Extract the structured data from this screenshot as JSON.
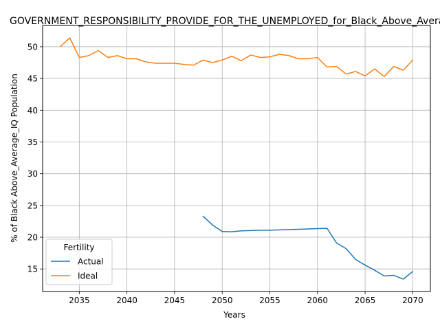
{
  "chart_data": {
    "type": "line",
    "title": "GOVERNMENT_RESPONSIBILITY_PROVIDE_FOR_THE_UNEMPLOYED_for_Black_Above_Average_IQ",
    "xlabel": "Years",
    "ylabel": "% of Black Above_Average_IQ Population",
    "xlim": [
      2031.15,
      2071.85
    ],
    "ylim": [
      11.45,
      53.35
    ],
    "xticks": [
      2035,
      2040,
      2045,
      2050,
      2055,
      2060,
      2065,
      2070
    ],
    "yticks": [
      15,
      20,
      25,
      30,
      35,
      40,
      45,
      50
    ],
    "grid": true,
    "legend": {
      "title": "Fertility",
      "position": "lower-left"
    },
    "series": [
      {
        "name": "Actual",
        "color": "#1f77b4",
        "x": [
          2048,
          2049,
          2050,
          2051,
          2052,
          2053,
          2054,
          2055,
          2056,
          2057,
          2058,
          2059,
          2060,
          2061,
          2062,
          2063,
          2064,
          2065,
          2066,
          2067,
          2068,
          2069,
          2070
        ],
        "y": [
          23.3,
          21.9,
          20.9,
          20.85,
          21.0,
          21.05,
          21.1,
          21.1,
          21.15,
          21.2,
          21.25,
          21.3,
          21.35,
          21.4,
          19.1,
          18.2,
          16.5,
          15.6,
          14.8,
          13.9,
          14.0,
          13.4,
          14.6
        ]
      },
      {
        "name": "Ideal",
        "color": "#ff7f0e",
        "x": [
          2033,
          2034,
          2035,
          2036,
          2037,
          2038,
          2039,
          2040,
          2041,
          2042,
          2043,
          2044,
          2045,
          2046,
          2047,
          2048,
          2049,
          2050,
          2051,
          2052,
          2053,
          2054,
          2055,
          2056,
          2057,
          2058,
          2059,
          2060,
          2061,
          2062,
          2063,
          2064,
          2065,
          2066,
          2067,
          2068,
          2069,
          2070
        ],
        "y": [
          50.0,
          51.4,
          48.3,
          48.6,
          49.4,
          48.3,
          48.6,
          48.1,
          48.1,
          47.6,
          47.4,
          47.4,
          47.4,
          47.2,
          47.1,
          47.9,
          47.5,
          47.9,
          48.5,
          47.8,
          48.7,
          48.3,
          48.4,
          48.8,
          48.6,
          48.1,
          48.1,
          48.3,
          46.8,
          46.9,
          45.7,
          46.1,
          45.4,
          46.5,
          45.3,
          46.9,
          46.3,
          47.9
        ]
      }
    ]
  }
}
